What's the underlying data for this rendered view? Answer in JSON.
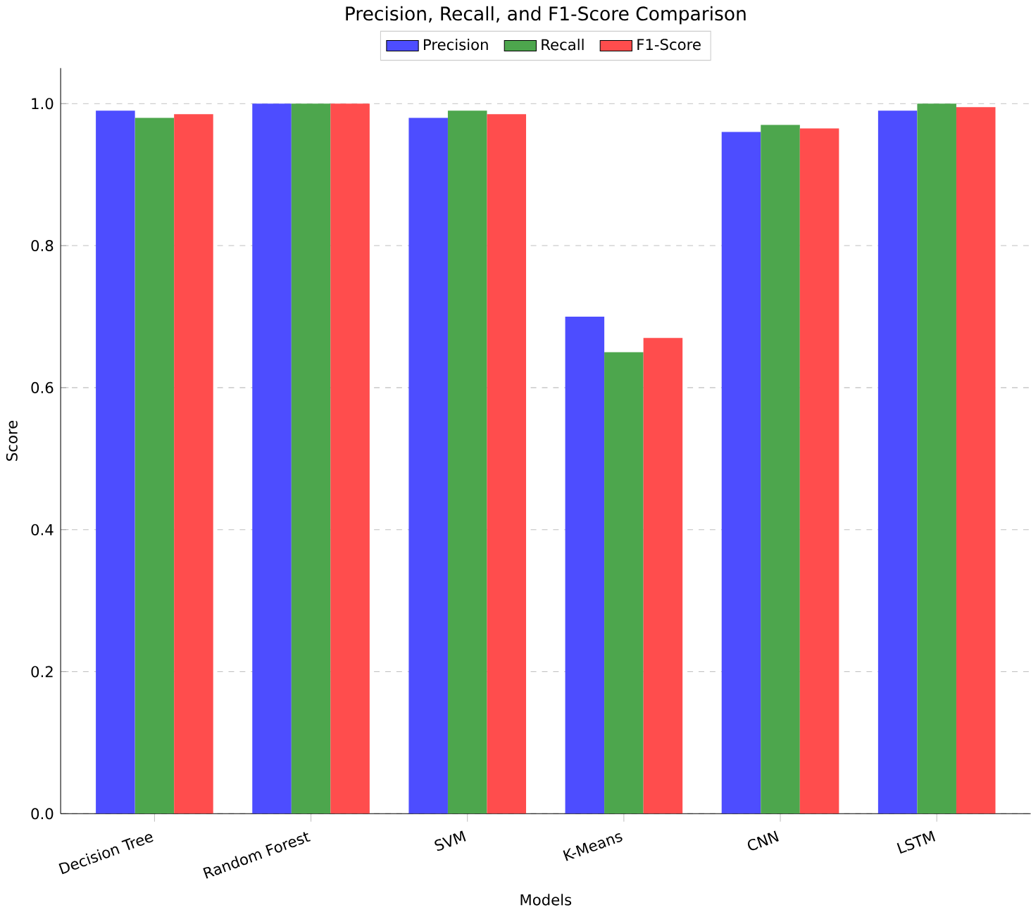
{
  "chart_data": {
    "type": "bar",
    "title": "Precision, Recall, and F1-Score Comparison",
    "xlabel": "Models",
    "ylabel": "Score",
    "categories": [
      "Decision Tree",
      "Random Forest",
      "SVM",
      "K-Means",
      "CNN",
      "LSTM"
    ],
    "series": [
      {
        "name": "Precision",
        "color": "#4d4dff",
        "values": [
          0.99,
          1.0,
          0.98,
          0.7,
          0.96,
          0.99
        ]
      },
      {
        "name": "Recall",
        "color": "#4da64d",
        "values": [
          0.98,
          1.0,
          0.99,
          0.65,
          0.97,
          1.0
        ]
      },
      {
        "name": "F1-Score",
        "color": "#ff4d4d",
        "values": [
          0.985,
          1.0,
          0.985,
          0.67,
          0.965,
          0.995
        ]
      }
    ],
    "ylim": [
      0,
      1.05
    ],
    "yticks": [
      {
        "value": 0,
        "label": "0.0"
      },
      0.2,
      0.4,
      0.6,
      0.8,
      {
        "value": 1,
        "label": "1.0"
      }
    ],
    "grid": "y",
    "legend": "top"
  }
}
